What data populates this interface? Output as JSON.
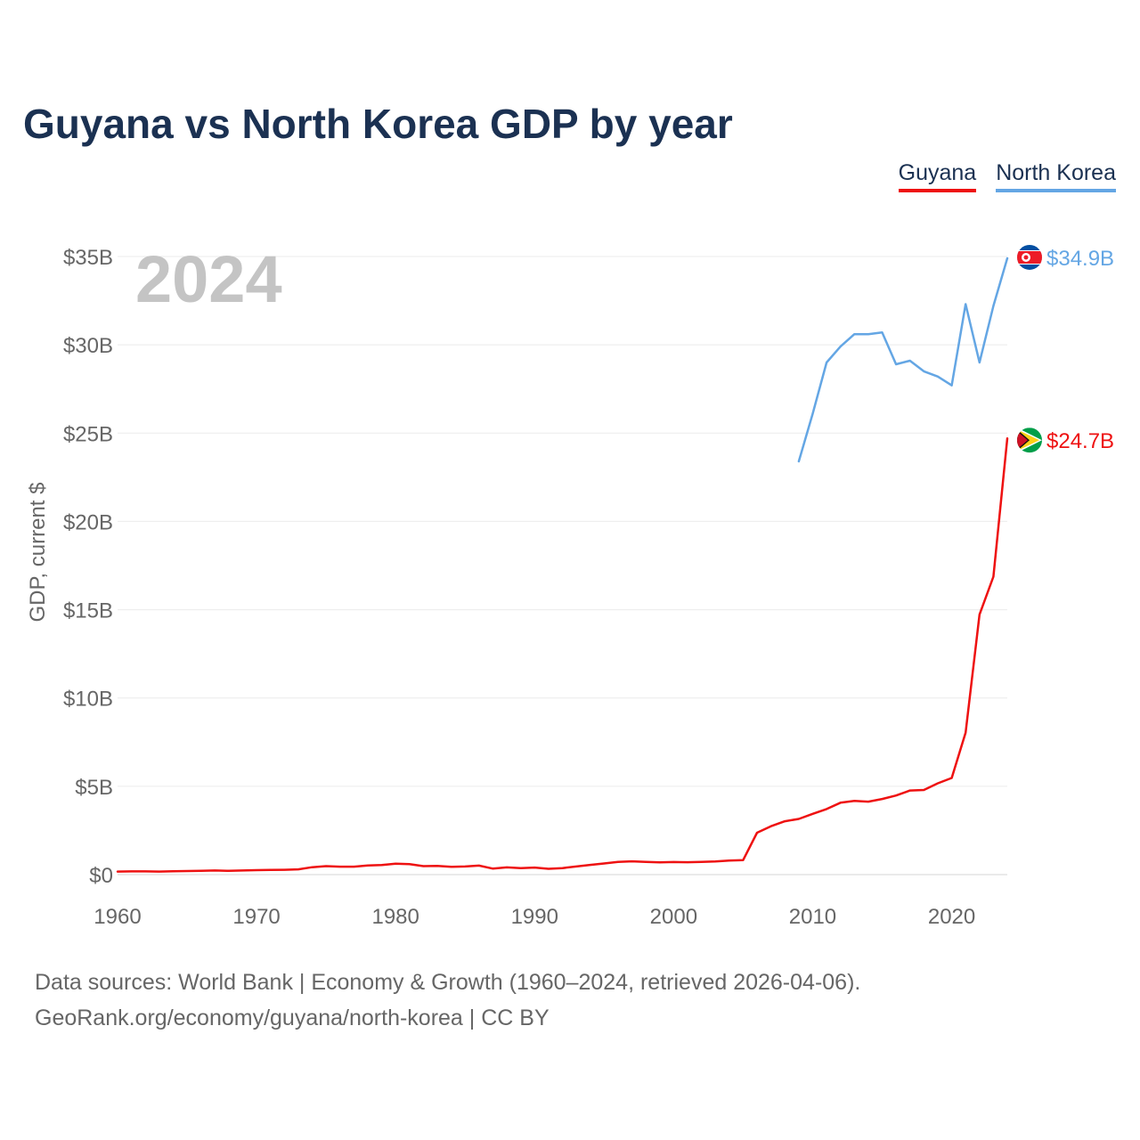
{
  "chart_data": {
    "type": "line",
    "title": "Guyana vs North Korea GDP by year",
    "year_label": "2024",
    "ylabel": "GDP, current $",
    "xlim": [
      1960,
      2024
    ],
    "ylim": [
      0,
      35
    ],
    "y_unit": "billion US$",
    "yticks": [
      {
        "value": 0,
        "label": "$0"
      },
      {
        "value": 5,
        "label": "$5B"
      },
      {
        "value": 10,
        "label": "$10B"
      },
      {
        "value": 15,
        "label": "$15B"
      },
      {
        "value": 20,
        "label": "$20B"
      },
      {
        "value": 25,
        "label": "$25B"
      },
      {
        "value": 30,
        "label": "$30B"
      },
      {
        "value": 35,
        "label": "$35B"
      }
    ],
    "xticks": [
      {
        "value": 1960,
        "label": "1960"
      },
      {
        "value": 1970,
        "label": "1970"
      },
      {
        "value": 1980,
        "label": "1980"
      },
      {
        "value": 1990,
        "label": "1990"
      },
      {
        "value": 2000,
        "label": "2000"
      },
      {
        "value": 2010,
        "label": "2010"
      },
      {
        "value": 2020,
        "label": "2020"
      }
    ],
    "grid": true,
    "legend_position": "top-right",
    "series": [
      {
        "name": "Guyana",
        "key": "guyana",
        "color": "#ee1111",
        "end_label": "$24.7B",
        "flag": "guyana-flag",
        "x": [
          1960,
          1961,
          1962,
          1963,
          1964,
          1965,
          1966,
          1967,
          1968,
          1969,
          1970,
          1971,
          1972,
          1973,
          1974,
          1975,
          1976,
          1977,
          1978,
          1979,
          1980,
          1981,
          1982,
          1983,
          1984,
          1985,
          1986,
          1987,
          1988,
          1989,
          1990,
          1991,
          1992,
          1993,
          1994,
          1995,
          1996,
          1997,
          1998,
          1999,
          2000,
          2001,
          2002,
          2003,
          2004,
          2005,
          2006,
          2007,
          2008,
          2009,
          2010,
          2011,
          2012,
          2013,
          2014,
          2015,
          2016,
          2017,
          2018,
          2019,
          2020,
          2021,
          2022,
          2023,
          2024
        ],
        "values": [
          0.17,
          0.18,
          0.18,
          0.17,
          0.19,
          0.2,
          0.21,
          0.23,
          0.21,
          0.23,
          0.25,
          0.26,
          0.27,
          0.3,
          0.42,
          0.48,
          0.45,
          0.45,
          0.52,
          0.54,
          0.62,
          0.59,
          0.48,
          0.49,
          0.44,
          0.46,
          0.51,
          0.34,
          0.41,
          0.37,
          0.4,
          0.33,
          0.37,
          0.46,
          0.55,
          0.63,
          0.72,
          0.75,
          0.72,
          0.69,
          0.71,
          0.7,
          0.72,
          0.74,
          0.79,
          0.82,
          2.37,
          2.74,
          3.02,
          3.15,
          3.44,
          3.71,
          4.07,
          4.17,
          4.13,
          4.28,
          4.48,
          4.76,
          4.79,
          5.17,
          5.47,
          8.04,
          14.72,
          16.87,
          24.7
        ]
      },
      {
        "name": "North Korea",
        "key": "north_korea",
        "color": "#64a6e4",
        "end_label": "$34.9B",
        "flag": "north-korea-flag",
        "x": [
          2009,
          2010,
          2011,
          2012,
          2013,
          2014,
          2015,
          2016,
          2017,
          2018,
          2019,
          2020,
          2021,
          2022,
          2023,
          2024
        ],
        "values": [
          23.4,
          26.1,
          29.0,
          29.9,
          30.6,
          30.6,
          30.7,
          28.9,
          29.1,
          28.5,
          28.2,
          27.7,
          32.3,
          29.0,
          32.2,
          34.9
        ]
      }
    ]
  },
  "source": {
    "line1": "Data sources: World Bank | Economy & Growth (1960–2024, retrieved 2026-04-06).",
    "line2": "GeoRank.org/economy/guyana/north-korea | CC BY"
  }
}
